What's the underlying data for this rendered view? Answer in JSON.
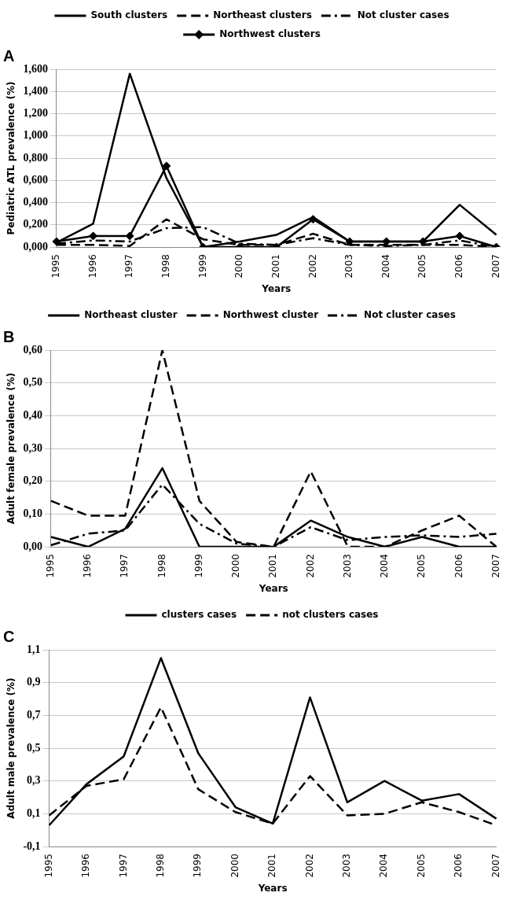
{
  "chart_data": [
    {
      "type": "line",
      "title": "A",
      "xlabel": "Years",
      "ylabel": "Pediatric ATL prevalence (%)",
      "legend": "top",
      "grid": "y",
      "categories": [
        "1995",
        "1996",
        "1997",
        "1998",
        "1999",
        "2000",
        "2001",
        "2002",
        "2003",
        "2004",
        "2005",
        "2006",
        "2007"
      ],
      "ylim": [
        0,
        1.6
      ],
      "yticks": [
        {
          "value": 0,
          "label": "0,000"
        },
        {
          "value": 0.2,
          "label": "0,200"
        },
        {
          "value": 0.4,
          "label": "0,400"
        },
        {
          "value": 0.6,
          "label": "0,600"
        },
        {
          "value": 0.8,
          "label": "0,800"
        },
        {
          "value": 1.0,
          "label": "1,000"
        },
        {
          "value": 1.2,
          "label": "1,200"
        },
        {
          "value": 1.4,
          "label": "1,400"
        },
        {
          "value": 1.6,
          "label": "1,600"
        }
      ],
      "series": [
        {
          "name": "South clusters",
          "color": "#000000",
          "line_style": "solid",
          "marker": "none",
          "values": [
            0.04,
            0.21,
            1.56,
            0.62,
            0.0,
            0.05,
            0.11,
            0.27,
            0.05,
            0.05,
            0.05,
            0.38,
            0.11
          ]
        },
        {
          "name": "Northeast clusters",
          "color": "#000000",
          "line_style": "dashed",
          "marker": "none",
          "values": [
            0.02,
            0.02,
            0.01,
            0.25,
            0.07,
            0.02,
            0.02,
            0.12,
            0.02,
            0.02,
            0.02,
            0.02,
            0.0
          ]
        },
        {
          "name": "Not cluster cases",
          "color": "#000000",
          "line_style": "dashdot",
          "marker": "none",
          "values": [
            0.03,
            0.06,
            0.05,
            0.17,
            0.18,
            0.03,
            0.02,
            0.08,
            0.02,
            0.01,
            0.02,
            0.06,
            0.0
          ]
        },
        {
          "name": "Northwest clusters",
          "color": "#000000",
          "line_style": "solid",
          "marker": "diamond",
          "values": [
            0.05,
            0.1,
            0.1,
            0.73,
            0.0,
            0.0,
            0.0,
            0.25,
            0.05,
            0.05,
            0.05,
            0.1,
            0.0
          ]
        }
      ]
    },
    {
      "type": "line",
      "title": "B",
      "xlabel": "Years",
      "ylabel": "Adult female prevalence (%)",
      "legend": "top",
      "grid": "y",
      "categories": [
        "1995",
        "1996",
        "1997",
        "1998",
        "1999",
        "2000",
        "2001",
        "2002",
        "2003",
        "2004",
        "2005",
        "2006",
        "2007"
      ],
      "ylim": [
        0,
        0.6
      ],
      "yticks": [
        {
          "value": 0,
          "label": "0,00"
        },
        {
          "value": 0.1,
          "label": "0,10"
        },
        {
          "value": 0.2,
          "label": "0,20"
        },
        {
          "value": 0.3,
          "label": "0,30"
        },
        {
          "value": 0.4,
          "label": "0,40"
        },
        {
          "value": 0.5,
          "label": "0,50"
        },
        {
          "value": 0.6,
          "label": "0,60"
        }
      ],
      "series": [
        {
          "name": "Northeast cluster",
          "color": "#000000",
          "line_style": "solid",
          "marker": "none",
          "values": [
            0.03,
            0.0,
            0.055,
            0.24,
            0.0,
            0.0,
            0.0,
            0.08,
            0.03,
            0.0,
            0.03,
            0.0,
            0.0
          ]
        },
        {
          "name": "Northwest cluster",
          "color": "#000000",
          "line_style": "dashed",
          "marker": "none",
          "values": [
            0.14,
            0.095,
            0.095,
            0.6,
            0.14,
            0.015,
            0.0,
            0.23,
            0.0,
            0.0,
            0.05,
            0.095,
            0.0
          ]
        },
        {
          "name": "Not cluster cases",
          "color": "#000000",
          "line_style": "dashdot",
          "marker": "none",
          "values": [
            0.005,
            0.04,
            0.05,
            0.19,
            0.07,
            0.01,
            0.0,
            0.06,
            0.02,
            0.03,
            0.035,
            0.03,
            0.04
          ]
        }
      ]
    },
    {
      "type": "line",
      "title": "C",
      "xlabel": "Years",
      "ylabel": "Adult male prevalence (%)",
      "legend": "top",
      "grid": "y",
      "categories": [
        "1995",
        "1996",
        "1997",
        "1998",
        "1999",
        "2000",
        "2001",
        "2002",
        "2003",
        "2004",
        "2005",
        "2006",
        "2007"
      ],
      "ylim": [
        -0.1,
        1.1
      ],
      "yticks": [
        {
          "value": -0.1,
          "label": "-0,1"
        },
        {
          "value": 0.1,
          "label": "0,1"
        },
        {
          "value": 0.3,
          "label": "0,3"
        },
        {
          "value": 0.5,
          "label": "0,5"
        },
        {
          "value": 0.7,
          "label": "0,7"
        },
        {
          "value": 0.9,
          "label": "0,9"
        },
        {
          "value": 1.1,
          "label": "1,1"
        }
      ],
      "series": [
        {
          "name": "clusters cases",
          "color": "#000000",
          "line_style": "solid",
          "marker": "none",
          "values": [
            0.03,
            0.28,
            0.45,
            1.05,
            0.47,
            0.14,
            0.04,
            0.81,
            0.17,
            0.3,
            0.18,
            0.22,
            0.07
          ]
        },
        {
          "name": "not clusters cases",
          "color": "#000000",
          "line_style": "dashed",
          "marker": "none",
          "values": [
            0.09,
            0.27,
            0.31,
            0.75,
            0.25,
            0.11,
            0.04,
            0.33,
            0.09,
            0.1,
            0.17,
            0.11,
            0.03
          ]
        }
      ]
    }
  ]
}
